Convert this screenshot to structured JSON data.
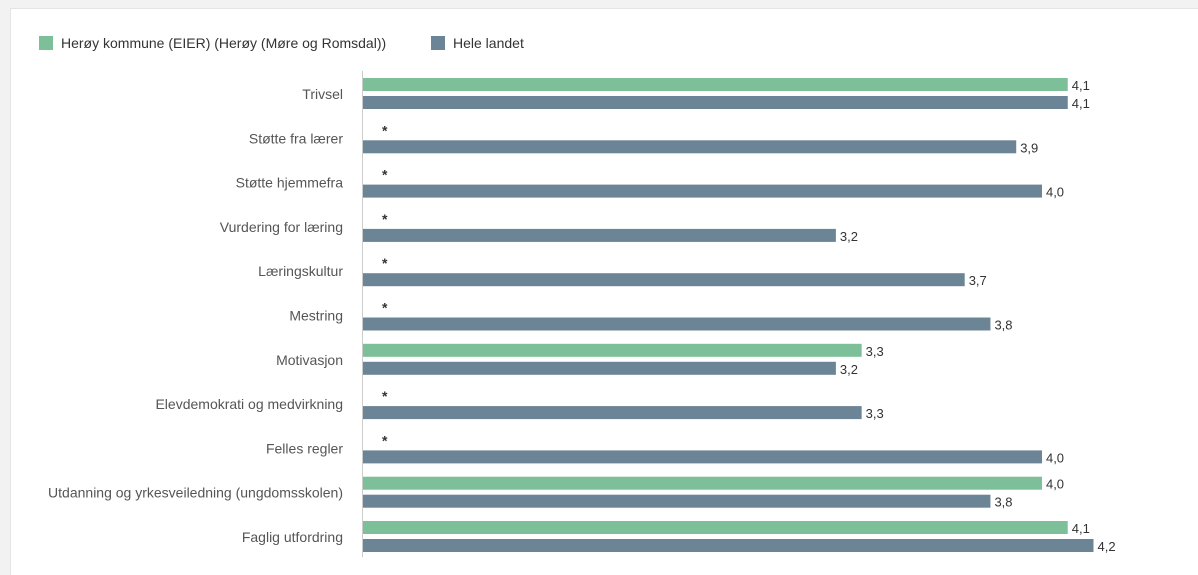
{
  "chart_data": {
    "type": "bar",
    "orientation": "horizontal",
    "title": "",
    "xlabel": "",
    "ylabel": "",
    "xlim": [
      0,
      5
    ],
    "grid": false,
    "legend_position": "top-left",
    "categories": [
      "Trivsel",
      "Støtte fra lærer",
      "Støtte hjemmefra",
      "Vurdering for læring",
      "Læringskultur",
      "Mestring",
      "Motivasjon",
      "Elevdemokrati og medvirkning",
      "Felles regler",
      "Utdanning og yrkesveiledning (ungdomsskolen)",
      "Faglig utfordring"
    ],
    "series": [
      {
        "name": "Herøy kommune (EIER) (Herøy (Møre og Romsdal))",
        "color": "#7dbf98",
        "values": [
          4.1,
          null,
          null,
          null,
          null,
          null,
          3.3,
          null,
          null,
          4.0,
          4.1
        ],
        "labels": [
          "4,1",
          "*",
          "*",
          "*",
          "*",
          "*",
          "3,3",
          "*",
          "*",
          "4,0",
          "4,1"
        ]
      },
      {
        "name": "Hele landet",
        "color": "#6b8496",
        "values": [
          4.1,
          3.9,
          4.0,
          3.2,
          3.7,
          3.8,
          3.2,
          3.3,
          4.0,
          3.8,
          4.2
        ],
        "labels": [
          "4,1",
          "3,9",
          "4,0",
          "3,2",
          "3,7",
          "3,8",
          "3,2",
          "3,3",
          "4,0",
          "3,8",
          "4,2"
        ]
      }
    ]
  }
}
